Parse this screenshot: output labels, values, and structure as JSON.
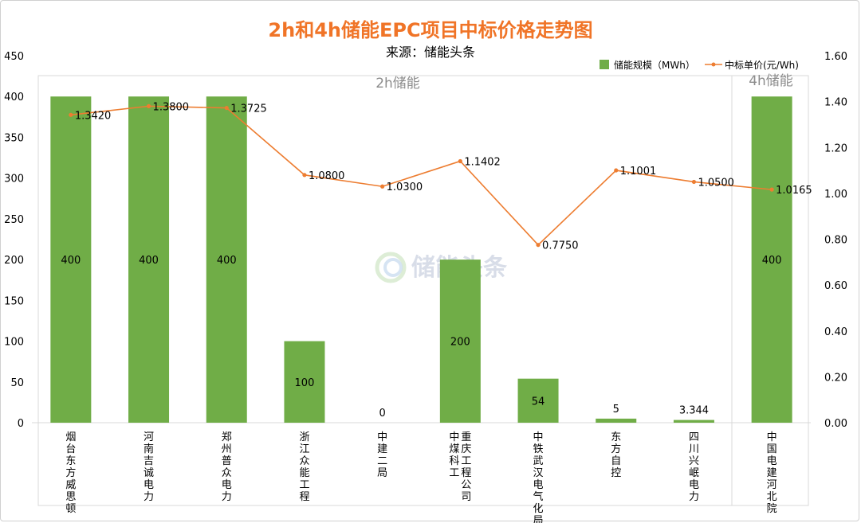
{
  "chart_data": {
    "type": "bar",
    "title": "2h和4h储能EPC项目中标价格走势图",
    "subtitle": "来源：储能头条",
    "categories": [
      "烟台东方威思顿",
      "河南吉诚电力",
      "郑州普众电力",
      "浙江众能工程",
      "中建二局",
      "重庆工程公司\n中煤科工",
      "中铁武汉电气化局",
      "东方自控",
      "四川兴岷电力",
      "中国电建河北院"
    ],
    "series": [
      {
        "name": "储能规模（MWh）",
        "type": "bar",
        "axis": "left",
        "color": "#70ad47",
        "values": [
          400,
          400,
          400,
          100,
          0,
          200,
          54,
          5,
          3.344,
          400
        ],
        "labels": [
          "400",
          "400",
          "400",
          "100",
          "0",
          "200",
          "54",
          "5",
          "3.344",
          "400"
        ]
      },
      {
        "name": "中标单价(元/Wh)",
        "type": "line",
        "axis": "right",
        "color": "#ed7d31",
        "values": [
          1.342,
          1.38,
          1.3725,
          1.08,
          1.03,
          1.1402,
          0.775,
          1.1001,
          1.05,
          1.0165
        ],
        "labels": [
          "1.3420",
          "1.3800",
          "1.3725",
          "1.0800",
          "1.0300",
          "1.1402",
          "0.7750",
          "1.1001",
          "1.0500",
          "1.0165"
        ]
      }
    ],
    "y_left": {
      "min": 0,
      "max": 450,
      "step": 50,
      "ticks": [
        "0",
        "50",
        "100",
        "150",
        "200",
        "250",
        "300",
        "350",
        "400",
        "450"
      ]
    },
    "y_right": {
      "min": 0,
      "max": 1.6,
      "step": 0.2,
      "ticks": [
        "0.00",
        "0.20",
        "0.40",
        "0.60",
        "0.80",
        "1.00",
        "1.20",
        "1.40",
        "1.60"
      ]
    },
    "group_labels": [
      "2h储能",
      "4h储能"
    ],
    "legend_position": "top-right",
    "grid": false,
    "watermark": "储能头条"
  }
}
